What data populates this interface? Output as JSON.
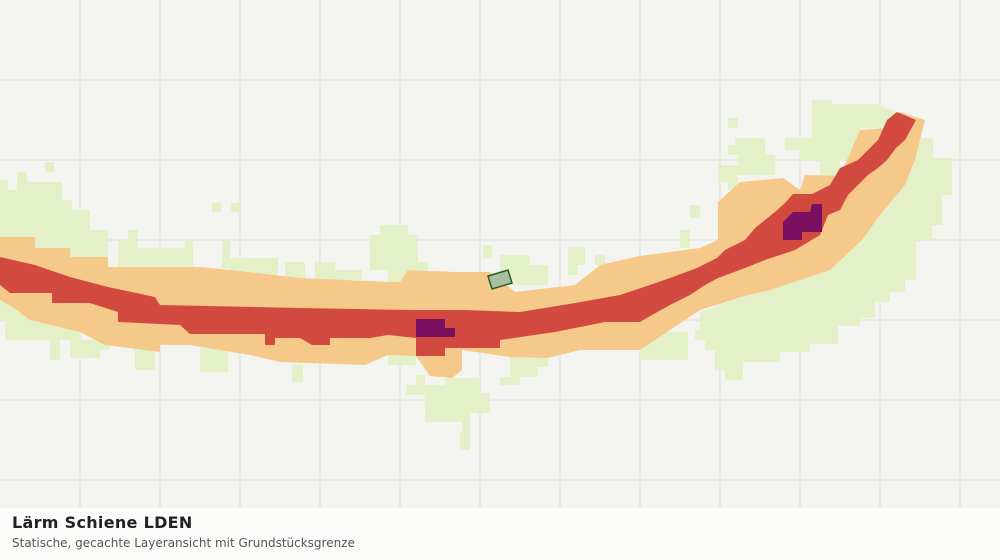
{
  "legend_panel": {
    "title": "Lärm Schiene LDEN",
    "subtitle": "Statische, gecachte Layeransicht mit Grundstücksgrenze"
  }
}
